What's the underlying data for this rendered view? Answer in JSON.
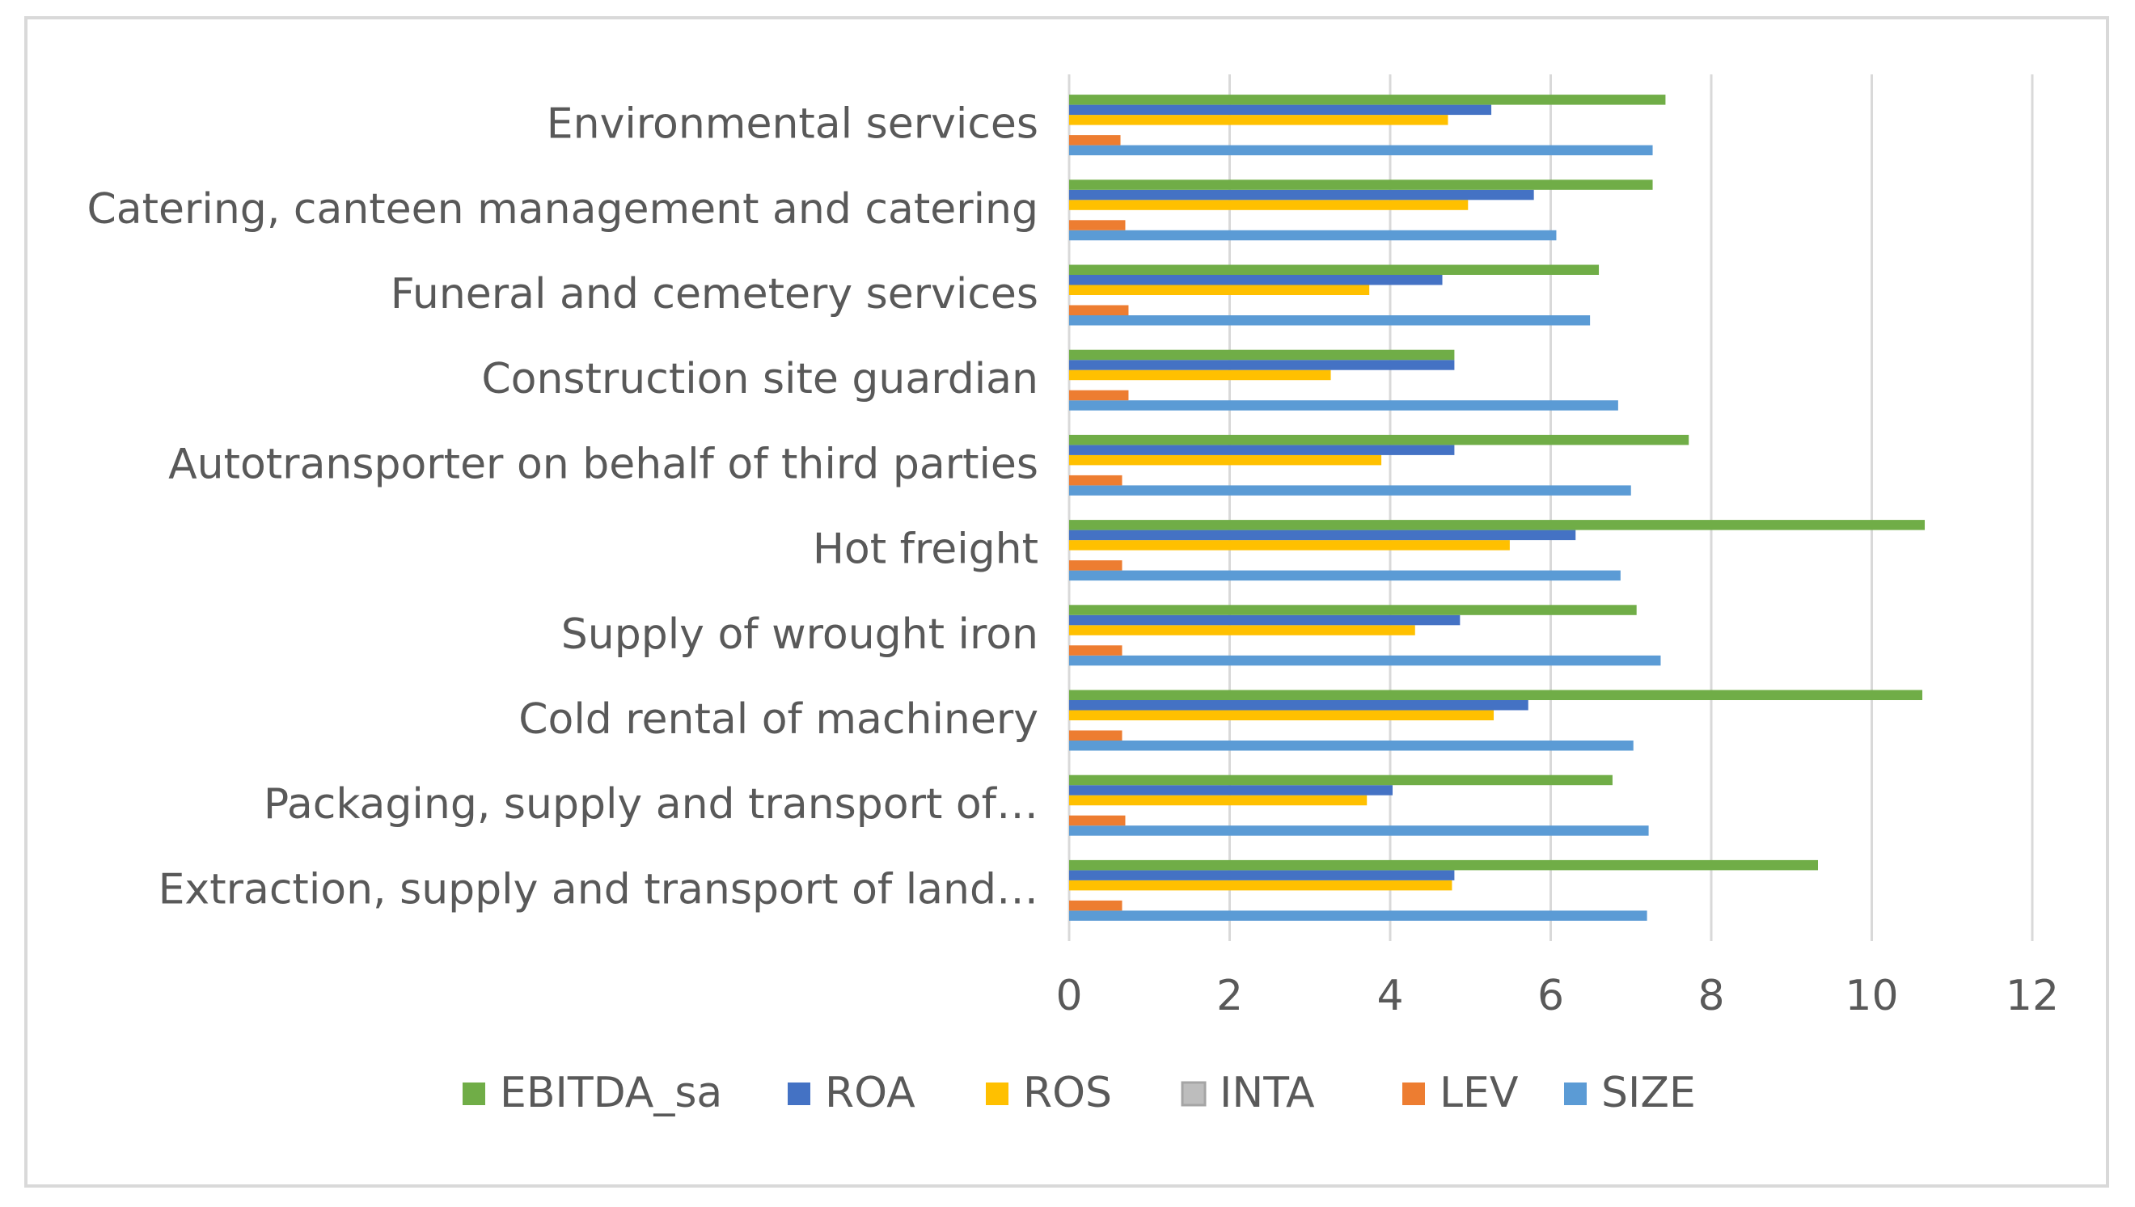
{
  "chart_data": {
    "type": "bar",
    "orientation": "horizontal",
    "categories": [
      "Extraction, supply and transport of land…",
      "Packaging, supply and transport of…",
      "Cold rental of machinery",
      "Supply of wrought iron",
      "Hot freight",
      "Autotransporter on behalf of third parties",
      "Construction site guardian",
      "Funeral and cemetery services",
      "Catering, canteen management and catering",
      "Environmental services"
    ],
    "series": [
      {
        "name": "SIZE",
        "color": "#5b9bd5",
        "values": [
          7.2,
          7.22,
          7.03,
          7.37,
          6.87,
          7.0,
          6.84,
          6.49,
          6.07,
          7.27
        ]
      },
      {
        "name": "LEV",
        "color": "#ed7d31",
        "values": [
          0.66,
          0.7,
          0.66,
          0.66,
          0.66,
          0.66,
          0.74,
          0.74,
          0.7,
          0.64
        ]
      },
      {
        "name": "INTA",
        "color": "#a5a5a5",
        "values": [
          0.0,
          0.0,
          0.0,
          0.0,
          0.0,
          0.0,
          0.0,
          0.0,
          0.0,
          0.0
        ]
      },
      {
        "name": "ROS",
        "color": "#ffc000",
        "values": [
          4.77,
          3.71,
          5.29,
          4.31,
          5.49,
          3.89,
          3.26,
          3.74,
          4.97,
          4.72
        ]
      },
      {
        "name": "ROA",
        "color": "#4472c4",
        "values": [
          4.8,
          4.03,
          5.72,
          4.87,
          6.31,
          4.8,
          4.8,
          4.65,
          5.79,
          5.26
        ]
      },
      {
        "name": "EBITDA_sa",
        "color": "#70ad47",
        "values": [
          9.33,
          6.77,
          10.63,
          7.07,
          10.66,
          7.72,
          4.8,
          6.6,
          7.27,
          7.43
        ]
      }
    ],
    "legend_order": [
      "EBITDA_sa",
      "ROA",
      "ROS",
      "INTA",
      "LEV",
      "SIZE"
    ],
    "xlim": [
      0,
      12
    ],
    "xticks": [
      "0",
      "2",
      "4",
      "6",
      "8",
      "10",
      "12"
    ],
    "grid": true,
    "legend_position": "bottom",
    "title": "",
    "xlabel": "",
    "ylabel": ""
  }
}
